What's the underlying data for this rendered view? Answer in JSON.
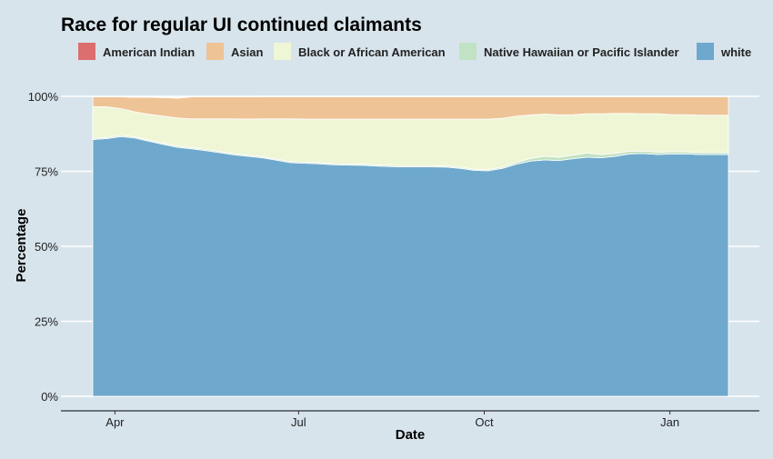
{
  "chart_data": {
    "type": "area",
    "stacked": true,
    "percent": true,
    "title": "Race for regular UI continued claimants",
    "xlabel": "Date",
    "ylabel": "Percentage",
    "ylim": [
      0,
      100
    ],
    "y_ticks": [
      0,
      25,
      50,
      75,
      100
    ],
    "y_tick_labels": [
      "0%",
      "25%",
      "50%",
      "75%",
      "100%"
    ],
    "x_ticks": [
      "2020-04-01",
      "2020-07-01",
      "2020-10-01",
      "2021-01-01"
    ],
    "x_tick_labels": [
      "Apr",
      "Jul",
      "Oct",
      "Jan"
    ],
    "xlim": [
      "2020-03-21",
      "2021-01-30"
    ],
    "grid": "horizontal",
    "legend_position": "top",
    "x": [
      "2020-03-21",
      "2020-03-28",
      "2020-04-04",
      "2020-04-11",
      "2020-04-18",
      "2020-04-25",
      "2020-05-02",
      "2020-05-09",
      "2020-05-16",
      "2020-05-23",
      "2020-05-30",
      "2020-06-06",
      "2020-06-13",
      "2020-06-20",
      "2020-06-27",
      "2020-07-04",
      "2020-07-11",
      "2020-07-18",
      "2020-07-25",
      "2020-08-01",
      "2020-08-08",
      "2020-08-15",
      "2020-08-22",
      "2020-08-29",
      "2020-09-05",
      "2020-09-12",
      "2020-09-19",
      "2020-09-26",
      "2020-10-03",
      "2020-10-10",
      "2020-10-17",
      "2020-10-24",
      "2020-10-31",
      "2020-11-07",
      "2020-11-14",
      "2020-11-21",
      "2020-11-28",
      "2020-12-05",
      "2020-12-12",
      "2020-12-19",
      "2020-12-26",
      "2021-01-02",
      "2021-01-09",
      "2021-01-16",
      "2021-01-23",
      "2021-01-30"
    ],
    "series": [
      {
        "name": "white",
        "color": "#6fa8cd",
        "values": [
          85.6,
          85.9,
          86.6,
          86.1,
          85.0,
          84.0,
          83.0,
          82.5,
          81.9,
          81.2,
          80.5,
          80.0,
          79.5,
          78.7,
          77.9,
          77.7,
          77.5,
          77.2,
          77.1,
          77.0,
          76.8,
          76.6,
          76.5,
          76.5,
          76.5,
          76.4,
          76.0,
          75.3,
          75.2,
          76.0,
          77.4,
          78.4,
          78.8,
          78.6,
          79.2,
          79.7,
          79.5,
          80.0,
          80.8,
          80.9,
          80.6,
          80.8,
          80.8,
          80.6,
          80.6,
          80.6
        ]
      },
      {
        "name": "Native Hawaiian or Pacific Islander",
        "color": "#c2e2c4",
        "values": [
          0.4,
          0.4,
          0.4,
          0.4,
          0.4,
          0.4,
          0.4,
          0.4,
          0.4,
          0.4,
          0.4,
          0.4,
          0.4,
          0.4,
          0.4,
          0.4,
          0.4,
          0.4,
          0.4,
          0.4,
          0.4,
          0.4,
          0.4,
          0.4,
          0.4,
          0.4,
          0.4,
          0.4,
          0.4,
          0.4,
          0.6,
          0.9,
          1.2,
          1.1,
          1.2,
          1.4,
          1.1,
          1.0,
          0.9,
          0.8,
          0.8,
          0.7,
          0.7,
          0.7,
          0.7,
          0.7
        ]
      },
      {
        "name": "Black or African American",
        "color": "#eff6d6",
        "values": [
          10.6,
          10.2,
          8.9,
          8.3,
          8.6,
          9.0,
          9.4,
          9.6,
          10.2,
          10.9,
          11.6,
          12.0,
          12.6,
          13.4,
          14.2,
          14.3,
          14.5,
          14.8,
          14.9,
          15.0,
          15.2,
          15.4,
          15.5,
          15.5,
          15.5,
          15.6,
          16.0,
          16.7,
          16.8,
          16.3,
          15.4,
          14.5,
          14.1,
          14.1,
          13.5,
          13.1,
          13.6,
          13.3,
          12.6,
          12.5,
          12.8,
          12.4,
          12.4,
          12.4,
          12.4,
          12.4
        ]
      },
      {
        "name": "Asian",
        "color": "#eec396",
        "values": [
          3.2,
          3.3,
          3.9,
          4.9,
          5.7,
          6.2,
          6.6,
          7.3,
          7.3,
          7.3,
          7.3,
          7.4,
          7.4,
          7.4,
          7.4,
          7.5,
          7.5,
          7.5,
          7.5,
          7.5,
          7.5,
          7.5,
          7.5,
          7.5,
          7.5,
          7.5,
          7.5,
          7.5,
          7.5,
          7.2,
          6.5,
          6.1,
          5.8,
          6.1,
          6.0,
          5.7,
          5.7,
          5.6,
          5.6,
          5.7,
          5.7,
          6.0,
          6.0,
          6.2,
          6.2,
          6.2
        ]
      },
      {
        "name": "American Indian",
        "color": "#dd6e6f",
        "values": [
          0.2,
          0.2,
          0.2,
          0.2,
          0.2,
          0.2,
          0.2,
          0.2,
          0.2,
          0.2,
          0.2,
          0.2,
          0.2,
          0.2,
          0.2,
          0.2,
          0.2,
          0.2,
          0.2,
          0.2,
          0.2,
          0.2,
          0.2,
          0.2,
          0.2,
          0.2,
          0.2,
          0.2,
          0.2,
          0.2,
          0.2,
          0.2,
          0.2,
          0.2,
          0.2,
          0.2,
          0.2,
          0.2,
          0.2,
          0.2,
          0.2,
          0.2,
          0.2,
          0.2,
          0.2,
          0.2
        ]
      }
    ],
    "legend_order": [
      "American Indian",
      "Asian",
      "Black or African American",
      "Native Hawaiian or Pacific Islander",
      "white"
    ]
  }
}
